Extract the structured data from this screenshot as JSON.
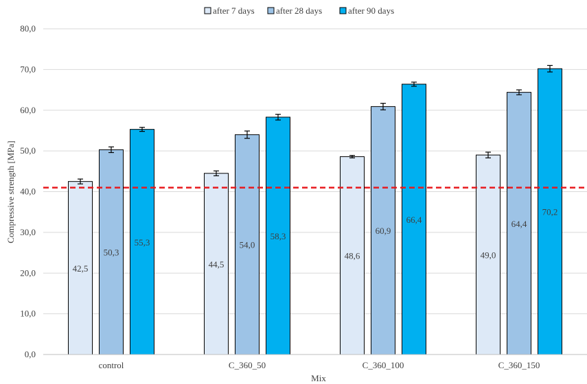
{
  "chart_data": {
    "type": "bar",
    "title": "",
    "xlabel": "Mix",
    "ylabel": "Compressive strength [MPa]",
    "ylim": [
      0,
      80
    ],
    "yticks": [
      "0,0",
      "10,0",
      "20,0",
      "30,0",
      "40,0",
      "50,0",
      "60,0",
      "70,0",
      "80,0"
    ],
    "grid": true,
    "legend": "top-center",
    "categories": [
      "control",
      "C_360_50",
      "C_360_100",
      "C_360_150"
    ],
    "series": [
      {
        "name": "after 7 days",
        "color": "#dde9f7",
        "values": [
          42.5,
          44.5,
          48.6,
          49.0
        ],
        "labels": [
          "42,5",
          "44,5",
          "48,6",
          "49,0"
        ],
        "errors": [
          0.6,
          0.6,
          0.3,
          0.7
        ]
      },
      {
        "name": "after 28 days",
        "color": "#9dc3e6",
        "values": [
          50.3,
          54.0,
          60.9,
          64.4
        ],
        "labels": [
          "50,3",
          "54,0",
          "60,9",
          "64,4"
        ],
        "errors": [
          0.7,
          0.9,
          0.8,
          0.6
        ]
      },
      {
        "name": "after 90 days",
        "color": "#00b0f0",
        "values": [
          55.3,
          58.3,
          66.4,
          70.2
        ],
        "labels": [
          "55,3",
          "58,3",
          "66,4",
          "70,2"
        ],
        "errors": [
          0.5,
          0.7,
          0.5,
          0.8
        ]
      }
    ],
    "reference_line": {
      "value": 41,
      "color": "#e8191d",
      "style": "dashed"
    }
  }
}
